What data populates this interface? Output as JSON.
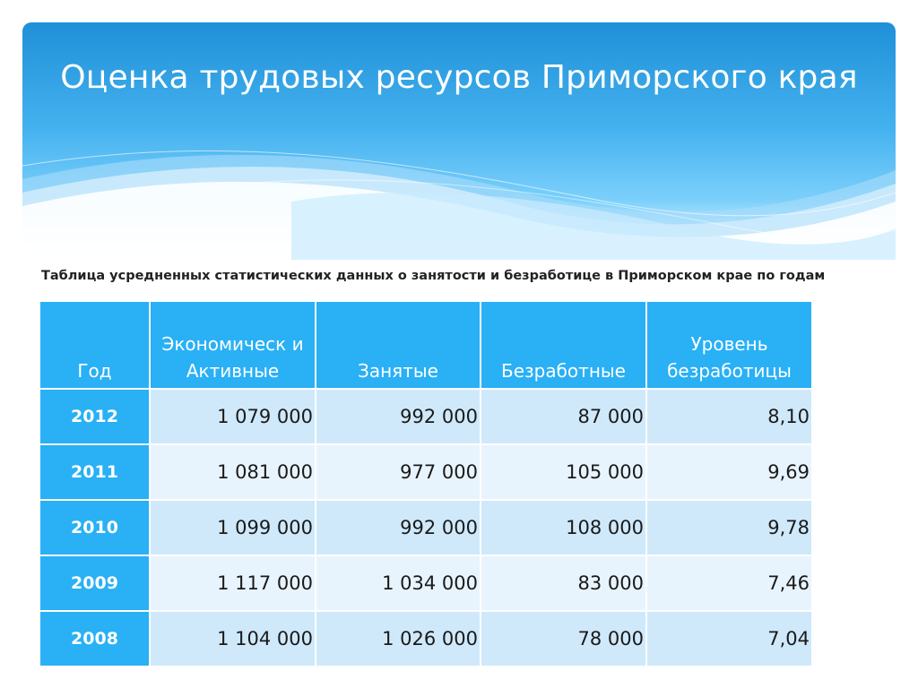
{
  "slide": {
    "title": "Оценка трудовых ресурсов Приморского края",
    "subtitle": "Таблица усредненных статистических данных о занятости и безработице в Приморском крае по годам"
  },
  "table": {
    "headers": [
      "Год",
      "Экономическ и Активные",
      "Занятые",
      "Безработные",
      "Уровень безработицы"
    ],
    "rows": [
      [
        "2012",
        "1 079 000",
        "992 000",
        "87 000",
        "8,10"
      ],
      [
        "2011",
        "1 081 000",
        "977 000",
        "105 000",
        "9,69"
      ],
      [
        "2010",
        "1 099 000",
        "992 000",
        "108 000",
        "9,78"
      ],
      [
        "2009",
        "1 117 000",
        "1 034 000",
        "83 000",
        "7,46"
      ],
      [
        "2008",
        "1 104 000",
        "1 026 000",
        "78 000",
        "7,04"
      ]
    ]
  },
  "colors": {
    "header_blue": "#1f90d8",
    "table_header": "#29b0f5",
    "row_odd": "#cfe9fb",
    "row_even": "#e8f4fd"
  }
}
